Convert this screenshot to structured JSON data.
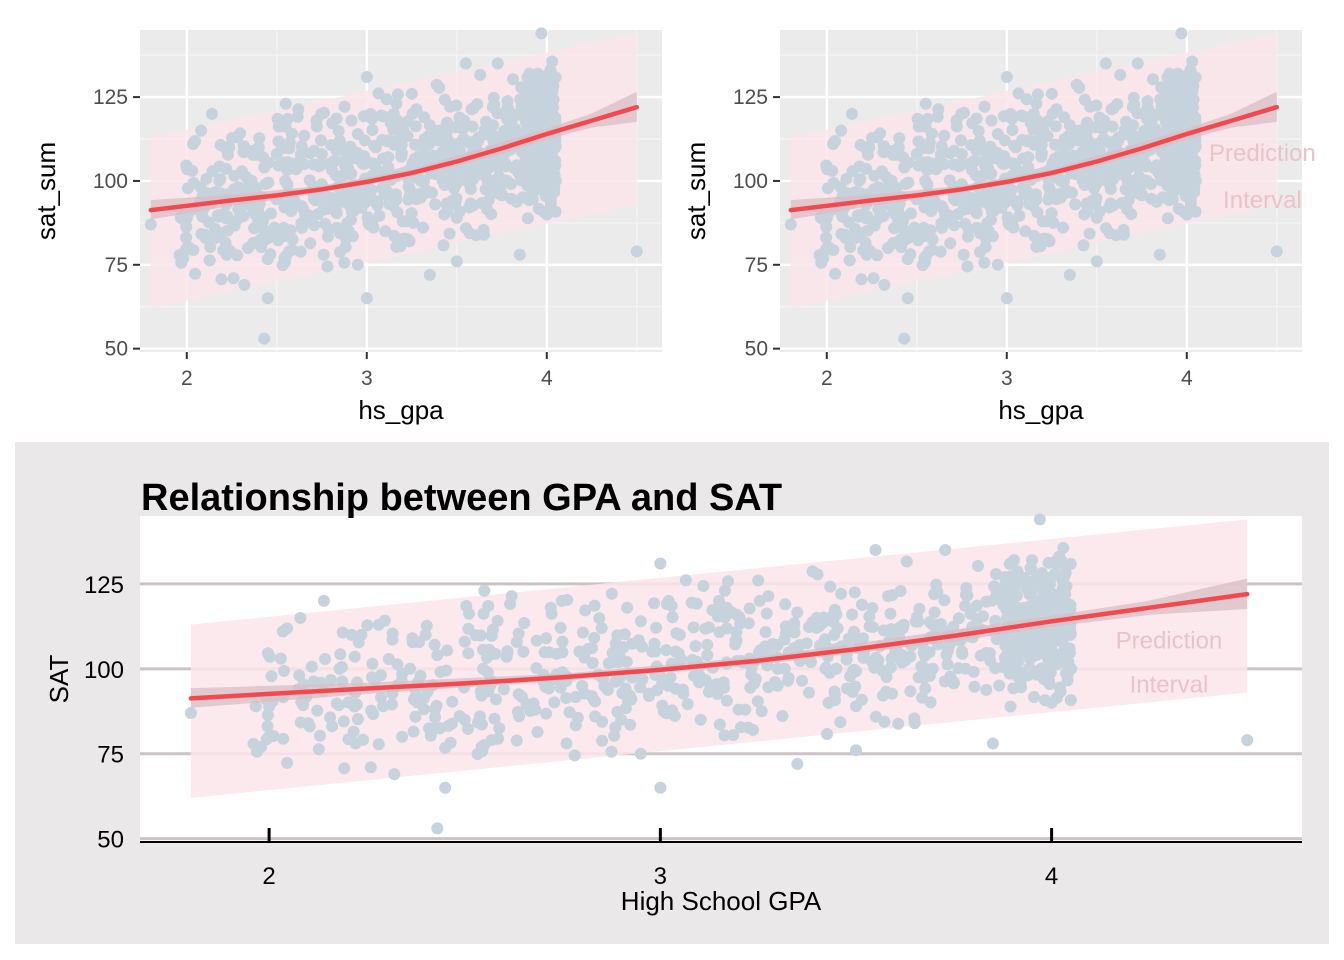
{
  "chart_data": [
    {
      "type": "scatter",
      "panel": "top-left",
      "title": "",
      "xlabel": "hs_gpa",
      "ylabel": "sat_sum",
      "xlim": [
        1.74,
        4.64
      ],
      "ylim": [
        49,
        145
      ],
      "x_ticks": [
        2,
        3,
        4
      ],
      "y_ticks": [
        50,
        75,
        100,
        125
      ],
      "grid": true,
      "annotation": [],
      "points_color": "#c6d3dc",
      "fit_color": "#f04a4f",
      "prediction_band_color": "#fbe5ea",
      "confidence_band_color": "#d9bcc4",
      "fit_line": {
        "x": [
          1.8,
          2.0,
          2.25,
          2.5,
          2.75,
          3.0,
          3.25,
          3.5,
          3.75,
          4.0,
          4.25,
          4.5
        ],
        "y": [
          91.3,
          92.6,
          94.2,
          95.7,
          97.5,
          99.7,
          102.4,
          105.8,
          109.7,
          114.0,
          118.0,
          122.0
        ]
      },
      "confidence_band": {
        "x": [
          1.8,
          2.25,
          2.75,
          3.25,
          3.75,
          4.0,
          4.25,
          4.5
        ],
        "lower": [
          88.5,
          92.6,
          96.5,
          101.3,
          108.0,
          112.4,
          115.9,
          117.6
        ],
        "upper": [
          94.3,
          95.9,
          98.6,
          103.5,
          111.5,
          115.6,
          120.1,
          126.6
        ]
      },
      "prediction_band": {
        "x": [
          1.8,
          4.5
        ],
        "lower": [
          62,
          93
        ],
        "upper": [
          113,
          144
        ]
      }
    },
    {
      "type": "scatter",
      "panel": "top-right",
      "title": "",
      "xlabel": "hs_gpa",
      "ylabel": "sat_sum",
      "xlim": [
        1.74,
        4.64
      ],
      "ylim": [
        49,
        145
      ],
      "x_ticks": [
        2,
        3,
        4
      ],
      "y_ticks": [
        50,
        75,
        100,
        125
      ],
      "grid": true,
      "annotation": [
        "Prediction",
        "Interval"
      ],
      "annotation_position": {
        "x": 4.42,
        "y": [
          106,
          92
        ]
      },
      "points_color": "#c6d3dc",
      "fit_color": "#f04a4f",
      "prediction_band_color": "#fbe5ea",
      "confidence_band_color": "#d9bcc4",
      "fit_line": {
        "x": [
          1.8,
          2.0,
          2.25,
          2.5,
          2.75,
          3.0,
          3.25,
          3.5,
          3.75,
          4.0,
          4.25,
          4.5
        ],
        "y": [
          91.3,
          92.6,
          94.2,
          95.7,
          97.5,
          99.7,
          102.4,
          105.8,
          109.7,
          114.0,
          118.0,
          122.0
        ]
      },
      "confidence_band": {
        "x": [
          1.8,
          2.25,
          2.75,
          3.25,
          3.75,
          4.0,
          4.25,
          4.5
        ],
        "lower": [
          88.5,
          92.6,
          96.5,
          101.3,
          108.0,
          112.4,
          115.9,
          117.6
        ],
        "upper": [
          94.3,
          95.9,
          98.6,
          103.5,
          111.5,
          115.6,
          120.1,
          126.6
        ]
      },
      "prediction_band": {
        "x": [
          1.8,
          4.5
        ],
        "lower": [
          62,
          93
        ],
        "upper": [
          113,
          144
        ]
      }
    },
    {
      "type": "scatter",
      "panel": "bottom",
      "title": "Relationship between GPA and SAT",
      "xlabel": "High School GPA",
      "ylabel": "SAT",
      "xlim": [
        1.67,
        4.64
      ],
      "ylim": [
        49,
        145
      ],
      "x_ticks": [
        2,
        3,
        4
      ],
      "y_ticks": [
        50,
        75,
        100,
        125
      ],
      "grid": "horizontal-major",
      "annotation": [
        "Prediction",
        "Interval"
      ],
      "annotation_position": {
        "x": 4.3,
        "y": [
          106,
          93
        ]
      },
      "points_color": "#c6d3dc",
      "fit_color": "#f04a4f",
      "prediction_band_color": "#fbe5ea",
      "confidence_band_color": "#d9bcc4",
      "fit_line": {
        "x": [
          1.8,
          2.0,
          2.25,
          2.5,
          2.75,
          3.0,
          3.25,
          3.5,
          3.75,
          4.0,
          4.25,
          4.5
        ],
        "y": [
          91.3,
          92.6,
          94.2,
          95.7,
          97.5,
          99.7,
          102.4,
          105.8,
          109.7,
          114.0,
          118.0,
          122.0
        ]
      },
      "confidence_band": {
        "x": [
          1.8,
          2.25,
          2.75,
          3.25,
          3.75,
          4.0,
          4.25,
          4.5
        ],
        "lower": [
          88.5,
          92.6,
          96.5,
          101.3,
          108.0,
          112.4,
          115.9,
          117.6
        ],
        "upper": [
          94.3,
          95.9,
          98.6,
          103.5,
          111.5,
          115.6,
          120.1,
          126.6
        ]
      },
      "prediction_band": {
        "x": [
          1.8,
          4.5
        ],
        "lower": [
          62,
          93
        ],
        "upper": [
          113,
          144
        ]
      }
    }
  ],
  "points": [
    [
      1.8,
      87
    ],
    [
      1.98,
      77
    ],
    [
      2.0,
      80
    ],
    [
      2.03,
      103
    ],
    [
      2.08,
      115
    ],
    [
      2.1,
      84
    ],
    [
      2.14,
      120
    ],
    [
      2.18,
      100
    ],
    [
      2.26,
      71
    ],
    [
      2.28,
      113
    ],
    [
      2.32,
      69
    ],
    [
      2.36,
      100
    ],
    [
      2.4,
      110
    ],
    [
      2.43,
      53
    ],
    [
      2.45,
      65
    ],
    [
      2.5,
      85
    ],
    [
      2.55,
      123
    ],
    [
      2.6,
      94
    ],
    [
      2.65,
      105
    ],
    [
      2.72,
      118
    ],
    [
      2.76,
      78
    ],
    [
      2.8,
      95
    ],
    [
      2.85,
      112
    ],
    [
      2.9,
      85
    ],
    [
      2.95,
      75
    ],
    [
      3.0,
      131
    ],
    [
      3.0,
      65
    ],
    [
      3.05,
      110
    ],
    [
      3.1,
      98
    ],
    [
      3.15,
      120
    ],
    [
      3.2,
      88
    ],
    [
      3.25,
      126
    ],
    [
      3.3,
      95
    ],
    [
      3.35,
      72
    ],
    [
      3.4,
      115
    ],
    [
      3.45,
      100
    ],
    [
      3.5,
      76
    ],
    [
      3.55,
      135
    ],
    [
      3.6,
      105
    ],
    [
      3.65,
      84
    ],
    [
      3.7,
      122
    ],
    [
      3.75,
      96
    ],
    [
      3.8,
      110
    ],
    [
      3.85,
      78
    ],
    [
      3.9,
      105
    ],
    [
      3.95,
      132
    ],
    [
      3.97,
      144
    ],
    [
      4.0,
      90
    ],
    [
      4.02,
      118
    ],
    [
      4.05,
      100
    ],
    [
      4.5,
      79
    ],
    [
      3.02,
      95
    ],
    [
      3.12,
      104
    ],
    [
      2.68,
      88
    ],
    [
      2.88,
      102
    ],
    [
      3.38,
      93
    ],
    [
      3.62,
      112
    ],
    [
      3.78,
      100
    ],
    [
      2.22,
      93
    ],
    [
      2.5,
      108
    ],
    [
      3.45,
      116
    ],
    [
      3.88,
      120
    ],
    [
      4.0,
      127
    ],
    [
      3.98,
      97
    ],
    [
      3.5,
      89
    ],
    [
      3.3,
      107
    ],
    [
      2.95,
      114
    ],
    [
      2.75,
      99
    ],
    [
      2.58,
      91
    ],
    [
      2.38,
      96
    ]
  ],
  "cloud": {
    "xmin": 1.95,
    "xmax": 4.05,
    "density_peak_x": 3.9,
    "noise_sd": 10.5,
    "pred_lower_offset": -24,
    "pred_upper_offset": 26
  }
}
